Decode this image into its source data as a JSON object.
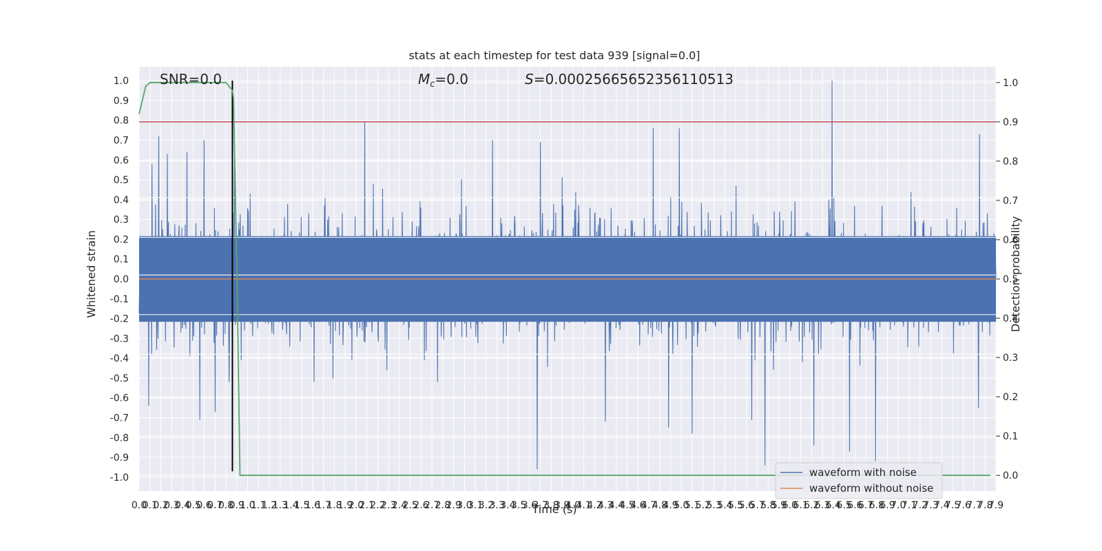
{
  "chart_data": {
    "type": "line",
    "title": "stats at each timestep for test data 939 [signal=0.0]",
    "xlabel": "Time (s)",
    "ylabel": "Whitened strain",
    "y2label": "Detection probability",
    "xlim": [
      0.0,
      7.9
    ],
    "ylim": [
      -1.07,
      1.07
    ],
    "y2lim": [
      -0.04,
      1.04
    ],
    "xticks": [
      "0.0",
      "0.1",
      "0.2",
      "0.3",
      "0.4",
      "0.5",
      "0.6",
      "0.7",
      "0.8",
      "0.9",
      "1.0",
      "1.1",
      "1.2",
      "1.3",
      "1.4",
      "1.5",
      "1.6",
      "1.7",
      "1.8",
      "1.9",
      "2.0",
      "2.1",
      "2.2",
      "2.3",
      "2.4",
      "2.5",
      "2.6",
      "2.7",
      "2.8",
      "2.9",
      "3.0",
      "3.1",
      "3.2",
      "3.3",
      "3.4",
      "3.5",
      "3.6",
      "3.7",
      "3.8",
      "3.9",
      "4.0",
      "4.1",
      "4.2",
      "4.3",
      "4.4",
      "4.5",
      "4.6",
      "4.7",
      "4.8",
      "4.9",
      "5.0",
      "5.1",
      "5.2",
      "5.3",
      "5.4",
      "5.5",
      "5.6",
      "5.7",
      "5.8",
      "5.9",
      "6.0",
      "6.1",
      "6.2",
      "6.3",
      "6.4",
      "6.5",
      "6.6",
      "6.7",
      "6.8",
      "6.9",
      "7.0",
      "7.1",
      "7.2",
      "7.3",
      "7.4",
      "7.5",
      "7.6",
      "7.7",
      "7.8",
      "7.9"
    ],
    "yticks": [
      "-1.0",
      "-0.9",
      "-0.8",
      "-0.7",
      "-0.6",
      "-0.5",
      "-0.4",
      "-0.3",
      "-0.2",
      "-0.1",
      "0.0",
      "0.1",
      "0.2",
      "0.3",
      "0.4",
      "0.5",
      "0.6",
      "0.7",
      "0.8",
      "0.9",
      "1.0"
    ],
    "y2ticks": [
      "0.0",
      "0.1",
      "0.2",
      "0.3",
      "0.4",
      "0.5",
      "0.6",
      "0.7",
      "0.8",
      "0.9",
      "1.0"
    ],
    "annotations": {
      "snr": "SNR=0.0",
      "mc_symbol": "M",
      "mc_sub": "c",
      "mc_value": "=0.0",
      "s_symbol": "S",
      "s_value": "=0.00025665652356110513"
    },
    "legend": {
      "placement": "lower-right",
      "entries": [
        "waveform with noise",
        "waveform without noise"
      ]
    },
    "series": [
      {
        "name": "waveform with noise",
        "color": "#4c72b0",
        "envelope": {
          "note_values_are_strain": true,
          "bulk_amplitude": 0.36,
          "spike_peaks": [
            {
              "t": 0.12,
              "v": 0.58
            },
            {
              "t": 0.18,
              "v": 0.72
            },
            {
              "t": 0.26,
              "v": 0.63
            },
            {
              "t": 0.44,
              "v": 0.64
            },
            {
              "t": 0.6,
              "v": 0.7
            },
            {
              "t": 0.7,
              "v": 0.59
            },
            {
              "t": 0.88,
              "v": 0.6
            },
            {
              "t": 2.08,
              "v": 0.79
            },
            {
              "t": 3.26,
              "v": 0.7
            },
            {
              "t": 3.7,
              "v": 0.69
            },
            {
              "t": 4.74,
              "v": 0.76
            },
            {
              "t": 4.98,
              "v": 0.76
            },
            {
              "t": 6.39,
              "v": 1.0
            },
            {
              "t": 7.75,
              "v": 0.73
            },
            {
              "t": 0.09,
              "v": -0.64
            },
            {
              "t": 0.56,
              "v": -0.71
            },
            {
              "t": 0.7,
              "v": -0.67
            },
            {
              "t": 3.67,
              "v": -0.96
            },
            {
              "t": 4.3,
              "v": -0.72
            },
            {
              "t": 4.88,
              "v": -0.75
            },
            {
              "t": 5.1,
              "v": -0.78
            },
            {
              "t": 5.65,
              "v": -0.71
            },
            {
              "t": 5.77,
              "v": -0.94
            },
            {
              "t": 6.22,
              "v": -0.84
            },
            {
              "t": 6.55,
              "v": -0.87
            },
            {
              "t": 6.79,
              "v": -0.92
            },
            {
              "t": 7.74,
              "v": -0.65
            }
          ]
        }
      },
      {
        "name": "waveform without noise",
        "color": "#dd8452",
        "x": [
          0.0,
          7.9
        ],
        "y": [
          0.0,
          0.0
        ]
      },
      {
        "name": "detection probability",
        "axis": "right",
        "color": "#55a868",
        "x": [
          0.0,
          0.06,
          0.1,
          0.8,
          0.86,
          0.87,
          0.9,
          0.93,
          7.85
        ],
        "y": [
          0.92,
          0.99,
          1.0,
          1.0,
          0.98,
          0.96,
          0.55,
          0.0,
          0.0
        ]
      }
    ],
    "reference_lines": [
      {
        "kind": "hline",
        "axis": "right",
        "value": 0.9,
        "color": "#c44e52"
      },
      {
        "kind": "vline",
        "value": 0.86,
        "ymin": -0.97,
        "ymax": 1.0,
        "color": "#000000"
      }
    ]
  }
}
